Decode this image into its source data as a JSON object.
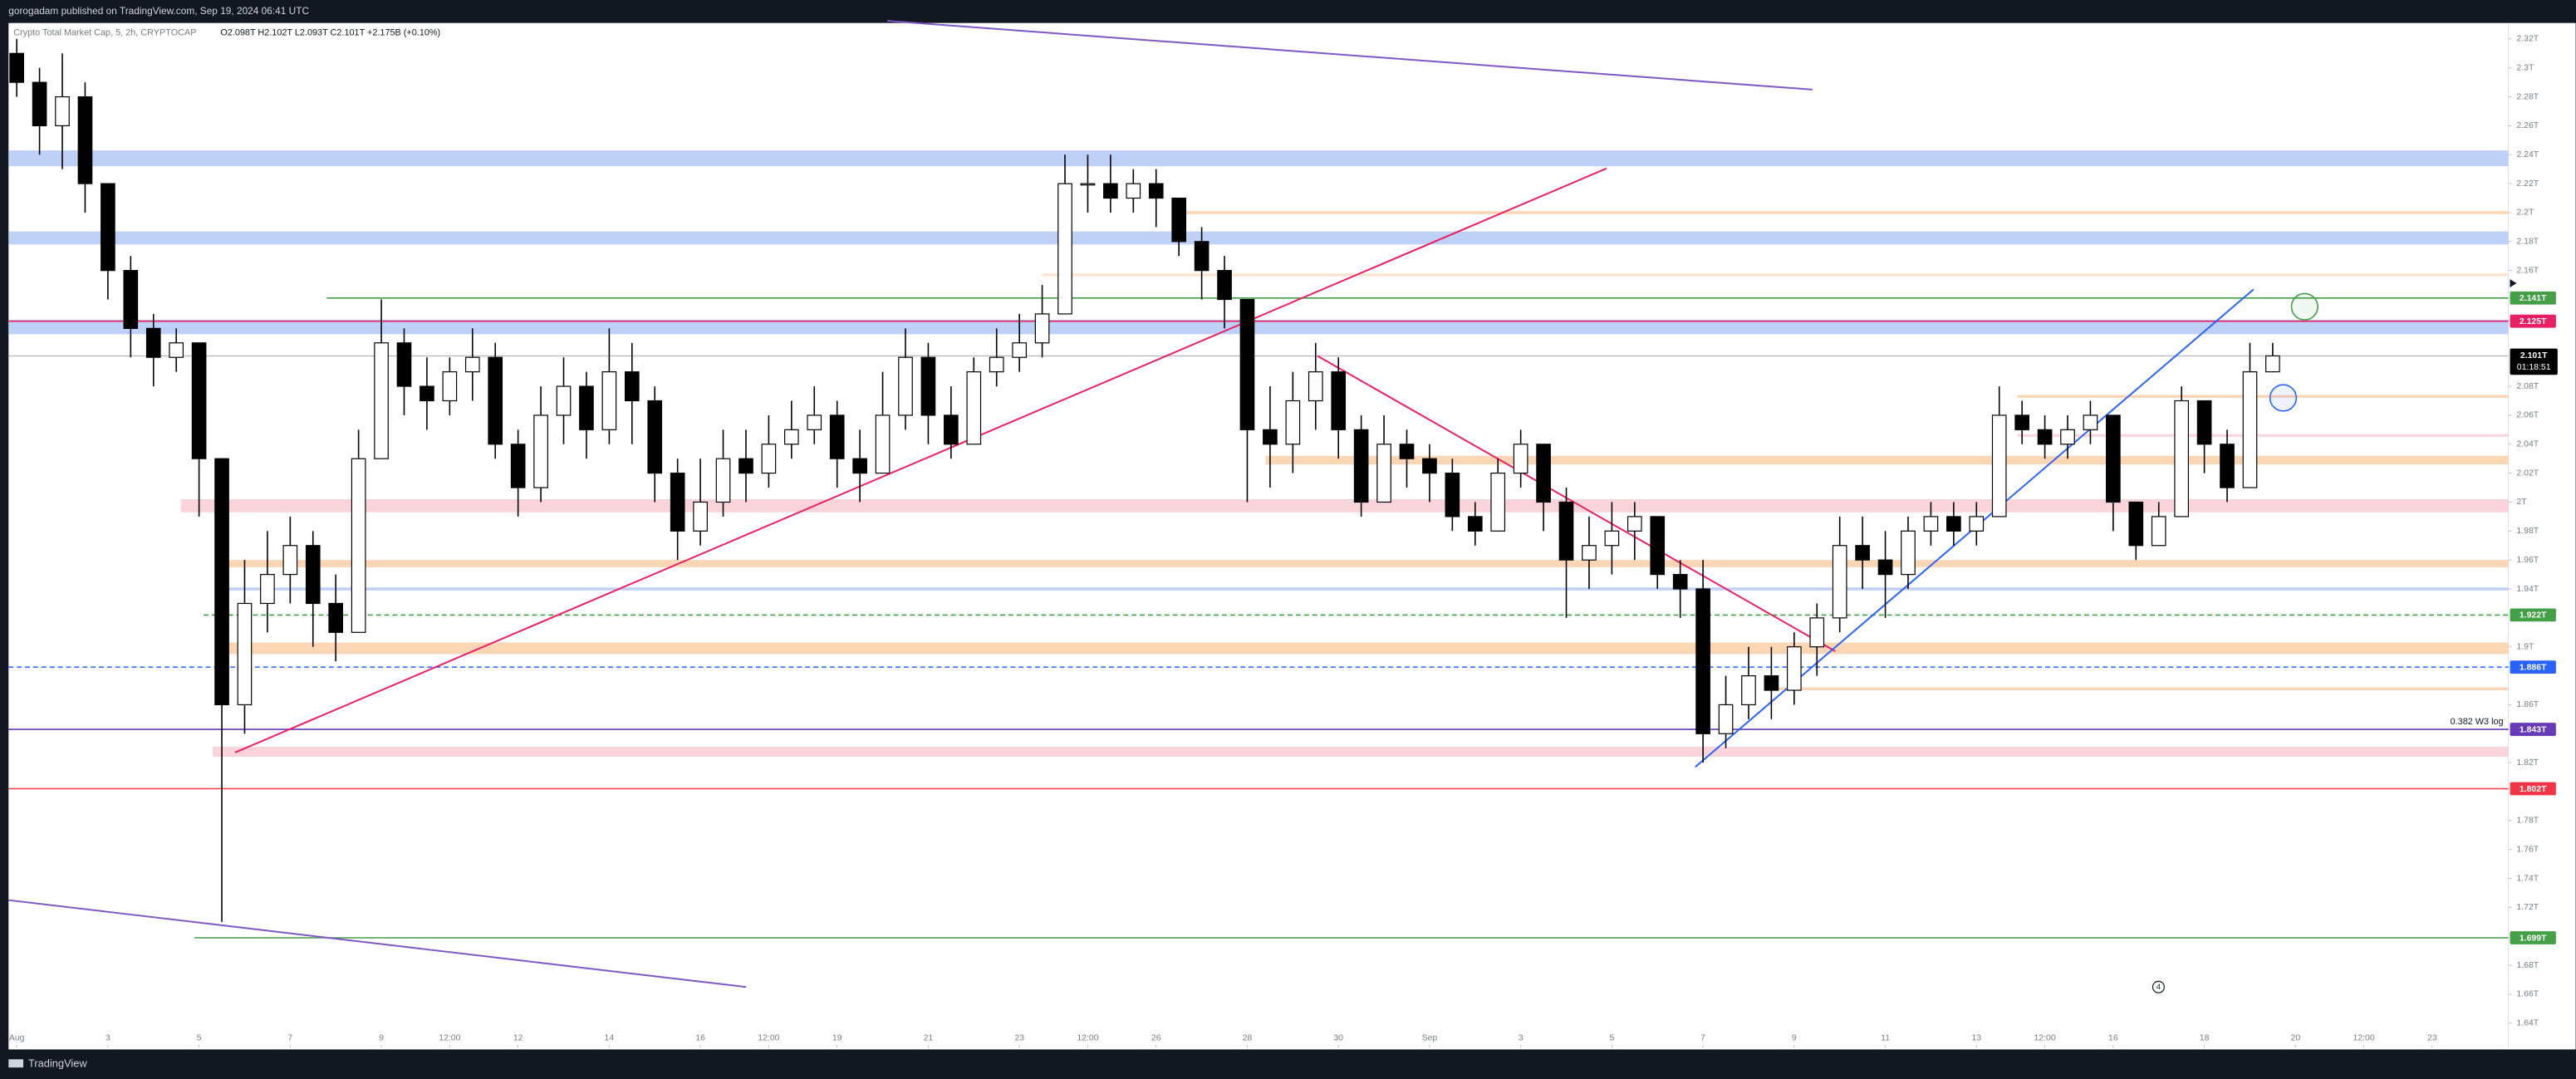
{
  "chart_data": {
    "type": "candlestick",
    "publisher": "gorogadam published on TradingView.com, Sep 19, 2024 06:41 UTC",
    "symbol": "Crypto Total Market Cap, 5, 2h, CRYPTOCAP",
    "legend": "O2.098T H2.102T L2.093T C2.101T +2.175B (+0.10%)",
    "footer": "TradingView",
    "countdown": "01:18:51",
    "event_marker": "4",
    "up_color": "#ffffff",
    "down_color": "#000000",
    "wick_color": "#000000",
    "x": [
      1,
      1.5,
      2,
      2.5,
      3,
      3.5,
      4,
      4.5,
      5,
      5.5,
      6,
      6.5,
      7,
      7.5,
      8,
      8.5,
      9,
      9.5,
      10,
      10.5,
      11,
      11.5,
      12,
      12.5,
      13,
      13.5,
      14,
      14.5,
      15,
      15.5,
      16,
      16.5,
      17,
      17.5,
      18,
      18.5,
      19,
      19.5,
      20,
      20.5,
      21,
      21.5,
      22,
      22.5,
      23,
      23.5,
      24,
      24.5,
      25,
      25.5,
      26,
      26.5,
      27,
      27.5,
      28,
      28.5,
      29,
      29.5,
      30,
      30.5,
      31,
      31.5,
      32,
      32.5,
      33,
      33.5,
      34,
      34.5,
      35,
      35.5,
      36,
      36.5,
      37,
      37.5,
      38,
      38.5,
      39,
      39.5,
      40,
      40.5,
      41,
      41.5,
      42,
      42.5,
      43,
      43.5,
      44,
      44.5,
      45,
      45.5,
      46,
      46.5,
      47,
      47.5,
      48,
      48.5,
      49,
      49.5,
      50,
      50.5
    ],
    "open": [
      2.31,
      2.29,
      2.26,
      2.28,
      2.22,
      2.16,
      2.12,
      2.1,
      2.11,
      2.03,
      1.86,
      1.93,
      1.95,
      1.97,
      1.93,
      1.91,
      2.03,
      2.11,
      2.08,
      2.07,
      2.09,
      2.1,
      2.04,
      2.01,
      2.06,
      2.08,
      2.05,
      2.09,
      2.07,
      2.02,
      1.98,
      2.0,
      2.03,
      2.02,
      2.04,
      2.05,
      2.06,
      2.03,
      2.02,
      2.06,
      2.1,
      2.06,
      2.04,
      2.09,
      2.1,
      2.11,
      2.13,
      2.22,
      2.22,
      2.21,
      2.22,
      2.21,
      2.18,
      2.16,
      2.14,
      2.05,
      2.04,
      2.07,
      2.09,
      2.05,
      2.0,
      2.04,
      2.03,
      2.02,
      1.99,
      1.98,
      2.02,
      2.04,
      2.0,
      1.96,
      1.97,
      1.98,
      1.99,
      1.95,
      1.94,
      1.84,
      1.86,
      1.88,
      1.87,
      1.9,
      1.92,
      1.97,
      1.96,
      1.95,
      1.98,
      1.99,
      1.98,
      1.99,
      2.06,
      2.05,
      2.04,
      2.05,
      2.06,
      2.0,
      1.97,
      1.99,
      2.07,
      2.04,
      2.01,
      2.09
    ],
    "high": [
      2.32,
      2.3,
      2.31,
      2.29,
      2.22,
      2.17,
      2.13,
      2.12,
      2.11,
      2.03,
      1.96,
      1.98,
      1.99,
      1.98,
      1.95,
      2.05,
      2.14,
      2.12,
      2.1,
      2.1,
      2.12,
      2.11,
      2.05,
      2.08,
      2.1,
      2.09,
      2.12,
      2.11,
      2.08,
      2.03,
      2.03,
      2.05,
      2.05,
      2.06,
      2.07,
      2.08,
      2.07,
      2.05,
      2.09,
      2.12,
      2.11,
      2.08,
      2.1,
      2.12,
      2.13,
      2.15,
      2.24,
      2.24,
      2.24,
      2.23,
      2.23,
      2.21,
      2.19,
      2.17,
      2.14,
      2.08,
      2.09,
      2.11,
      2.1,
      2.06,
      2.06,
      2.05,
      2.04,
      2.03,
      2.0,
      2.03,
      2.05,
      2.04,
      2.01,
      1.99,
      2.0,
      2.0,
      1.99,
      1.96,
      1.96,
      1.88,
      1.9,
      1.9,
      1.91,
      1.93,
      1.99,
      1.99,
      1.98,
      1.99,
      2.0,
      2.0,
      2.0,
      2.08,
      2.07,
      2.06,
      2.06,
      2.07,
      2.06,
      2.0,
      2.0,
      2.08,
      2.07,
      2.05,
      2.11,
      2.11
    ],
    "low": [
      2.28,
      2.24,
      2.23,
      2.2,
      2.14,
      2.1,
      2.08,
      2.09,
      1.99,
      1.71,
      1.84,
      1.91,
      1.93,
      1.9,
      1.89,
      1.91,
      2.03,
      2.06,
      2.05,
      2.06,
      2.07,
      2.03,
      1.99,
      2.0,
      2.04,
      2.03,
      2.04,
      2.04,
      2.0,
      1.96,
      1.97,
      1.99,
      2.0,
      2.01,
      2.03,
      2.04,
      2.01,
      2.0,
      2.02,
      2.05,
      2.04,
      2.03,
      2.04,
      2.08,
      2.09,
      2.1,
      2.13,
      2.2,
      2.2,
      2.2,
      2.19,
      2.17,
      2.14,
      2.12,
      2.0,
      2.01,
      2.02,
      2.05,
      2.03,
      1.99,
      2.0,
      2.01,
      2.0,
      1.98,
      1.97,
      1.98,
      2.01,
      1.98,
      1.92,
      1.94,
      1.95,
      1.96,
      1.94,
      1.92,
      1.82,
      1.83,
      1.85,
      1.85,
      1.86,
      1.88,
      1.91,
      1.94,
      1.92,
      1.94,
      1.97,
      1.97,
      1.97,
      1.99,
      2.04,
      2.03,
      2.03,
      2.04,
      1.98,
      1.96,
      1.97,
      1.99,
      2.02,
      2.0,
      2.01,
      2.09
    ],
    "close": [
      2.29,
      2.26,
      2.28,
      2.22,
      2.16,
      2.12,
      2.1,
      2.11,
      2.03,
      1.86,
      1.93,
      1.95,
      1.97,
      1.93,
      1.91,
      2.03,
      2.11,
      2.08,
      2.07,
      2.09,
      2.1,
      2.04,
      2.01,
      2.06,
      2.08,
      2.05,
      2.09,
      2.07,
      2.02,
      1.98,
      2.0,
      2.03,
      2.02,
      2.04,
      2.05,
      2.06,
      2.03,
      2.02,
      2.06,
      2.1,
      2.06,
      2.04,
      2.09,
      2.1,
      2.11,
      2.13,
      2.22,
      2.22,
      2.21,
      2.22,
      2.21,
      2.18,
      2.16,
      2.14,
      2.05,
      2.04,
      2.07,
      2.09,
      2.05,
      2.0,
      2.04,
      2.03,
      2.02,
      1.99,
      1.98,
      2.02,
      2.04,
      2.0,
      1.96,
      1.97,
      1.98,
      1.99,
      1.95,
      1.94,
      1.84,
      1.86,
      1.88,
      1.87,
      1.9,
      1.92,
      1.97,
      1.96,
      1.95,
      1.98,
      1.99,
      1.98,
      1.99,
      2.06,
      2.05,
      2.04,
      2.05,
      2.06,
      2.0,
      1.97,
      1.99,
      2.07,
      2.04,
      2.01,
      2.09,
      2.101
    ],
    "xlim": [
      0.82,
      55.67
    ],
    "xticks": [
      {
        "value": 1,
        "label": "Aug"
      },
      3,
      5,
      7,
      9,
      {
        "value": 10.5,
        "label": "12:00"
      },
      12,
      14,
      16,
      {
        "value": 17.5,
        "label": "12:00"
      },
      19,
      21,
      23,
      {
        "value": 24.5,
        "label": "12:00"
      },
      26,
      28,
      30,
      {
        "value": 32,
        "label": "Sep"
      },
      {
        "value": 34,
        "label": "3"
      },
      {
        "value": 36,
        "label": "5"
      },
      {
        "value": 38,
        "label": "7"
      },
      {
        "value": 40,
        "label": "9"
      },
      {
        "value": 42,
        "label": "11"
      },
      {
        "value": 44,
        "label": "13"
      },
      {
        "value": 45.5,
        "label": "12:00"
      },
      {
        "value": 47,
        "label": "16"
      },
      {
        "value": 49,
        "label": "18"
      },
      {
        "value": 51,
        "label": "20"
      },
      {
        "value": 52.5,
        "label": "12:00"
      },
      {
        "value": 54,
        "label": "23"
      }
    ],
    "ylim": [
      1.623,
      2.331
    ],
    "yticks": [
      {
        "value": 2.32,
        "label": "2.32T"
      },
      {
        "value": 2.3,
        "label": "2.3T"
      },
      {
        "value": 2.28,
        "label": "2.28T"
      },
      {
        "value": 2.26,
        "label": "2.26T"
      },
      {
        "value": 2.24,
        "label": "2.24T"
      },
      {
        "value": 2.22,
        "label": "2.22T"
      },
      {
        "value": 2.2,
        "label": "2.2T"
      },
      {
        "value": 2.18,
        "label": "2.18T"
      },
      {
        "value": 2.16,
        "label": "2.16T"
      },
      {
        "value": 2.08,
        "label": "2.08T"
      },
      {
        "value": 2.06,
        "label": "2.06T"
      },
      {
        "value": 2.04,
        "label": "2.04T"
      },
      {
        "value": 2.02,
        "label": "2.02T"
      },
      {
        "value": 2,
        "label": "2T"
      },
      {
        "value": 1.98,
        "label": "1.98T"
      },
      {
        "value": 1.96,
        "label": "1.96T"
      },
      {
        "value": 1.94,
        "label": "1.94T"
      },
      {
        "value": 1.9,
        "label": "1.9T"
      },
      {
        "value": 1.86,
        "label": "1.86T"
      },
      {
        "value": 1.82,
        "label": "1.82T"
      },
      {
        "value": 1.78,
        "label": "1.78T"
      },
      {
        "value": 1.76,
        "label": "1.76T"
      },
      {
        "value": 1.74,
        "label": "1.74T"
      },
      {
        "value": 1.72,
        "label": "1.72T"
      },
      {
        "value": 1.68,
        "label": "1.68T"
      },
      {
        "value": 1.66,
        "label": "1.66T"
      },
      {
        "value": 1.64,
        "label": "1.64T"
      }
    ],
    "grid": false,
    "zones": [
      {
        "from": 2.232,
        "to": 2.243,
        "color": "#b4c8f5"
      },
      {
        "from": 2.178,
        "to": 2.187,
        "color": "#b4c8f5"
      },
      {
        "from": 2.116,
        "to": 2.126,
        "color": "#b4c8f5"
      },
      {
        "from": 2.199,
        "to": 2.201,
        "color": "#f9cfa8",
        "x_start": 26.4
      },
      {
        "from": 2.156,
        "to": 2.158,
        "color": "#fbe0c8",
        "x_start": 23.5
      },
      {
        "from": 2.072,
        "to": 2.074,
        "color": "#f9cfa8",
        "x_start": 44.9
      },
      {
        "from": 2.045,
        "to": 2.047,
        "color": "#f8d0d8",
        "x_start": 44.9
      },
      {
        "from": 2.026,
        "to": 2.032,
        "color": "#f9cfa8",
        "x_start": 28.4
      },
      {
        "from": 1.993,
        "to": 2.002,
        "color": "#f8cdd5",
        "x_start": 4.6
      },
      {
        "from": 1.955,
        "to": 1.96,
        "color": "#f9cfa8",
        "x_start": 5.5
      },
      {
        "from": 1.939,
        "to": 1.941,
        "color": "#b4c8f5",
        "x_start": 5.5
      },
      {
        "from": 1.895,
        "to": 1.903,
        "color": "#f9cfa8",
        "x_start": 5.4
      },
      {
        "from": 1.87,
        "to": 1.872,
        "color": "#f9cfa8",
        "x_start": 39.6
      },
      {
        "from": 1.824,
        "to": 1.831,
        "color": "#f8cdd5",
        "x_start": 5.3
      }
    ],
    "levels": [
      {
        "value": 2.141,
        "label": "2.141T",
        "color": "#43a047",
        "x_start": 7.8
      },
      {
        "value": 2.125,
        "label": "2.125T",
        "color": "#e91e63"
      },
      {
        "value": 1.922,
        "label": "1.922T",
        "color": "#43a047",
        "dash": true,
        "x_start": 5.1
      },
      {
        "value": 1.886,
        "label": "1.886T",
        "color": "#2962ff",
        "dash": true
      },
      {
        "value": 1.843,
        "label": "1.843T",
        "color": "#673ab7",
        "note": "0.382 W3 log"
      },
      {
        "value": 1.802,
        "label": "1.802T",
        "color": "#f23645"
      },
      {
        "value": 1.699,
        "label": "1.699T",
        "color": "#43a047",
        "x_start": 4.9
      }
    ],
    "last_price": {
      "value": 2.101,
      "label": "2.101T",
      "color": "#000000"
    },
    "trendlines": [
      {
        "x": [
          20.1,
          40.4
        ],
        "y": [
          2.3325,
          2.285
        ],
        "color": "#7e57c2"
      },
      {
        "x": [
          0.82,
          17.0
        ],
        "y": [
          1.725,
          1.665
        ],
        "color": "#7e57c2"
      },
      {
        "x": [
          5.79,
          35.88
        ],
        "y": [
          1.827,
          2.2305
        ],
        "color": "#e91e63"
      },
      {
        "x": [
          29.54,
          40.9
        ],
        "y": [
          2.101,
          1.897
        ],
        "color": "#e91e63"
      },
      {
        "x": [
          37.83,
          50.08
        ],
        "y": [
          1.817,
          2.147
        ],
        "color": "#2962ff"
      }
    ],
    "circles": [
      {
        "x": 51.2,
        "y": 2.135,
        "color": "#43a047"
      },
      {
        "x": 50.73,
        "y": 2.072,
        "color": "#2962ff"
      }
    ]
  }
}
